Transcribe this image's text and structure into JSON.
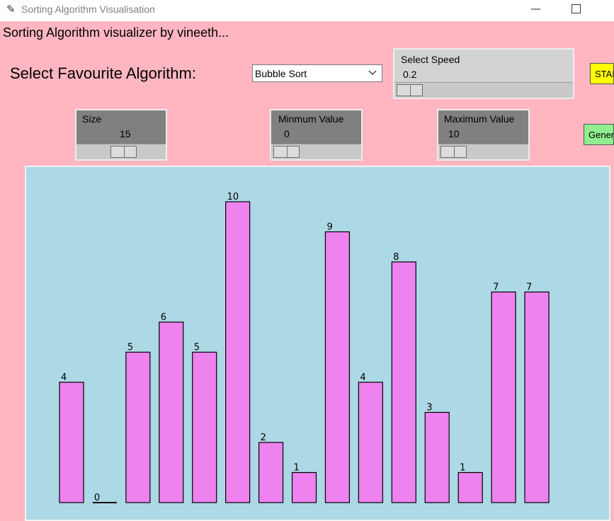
{
  "window": {
    "title": "Sorting Algorithm Visualisation",
    "minimize_glyph": "—"
  },
  "header": {
    "text": "Sorting Algorithm visualizer by vineeth..."
  },
  "algorithm": {
    "label": "Select Favourite Algorithm:",
    "selected": "Bubble Sort"
  },
  "speed": {
    "label": "Select Speed",
    "value": "0.2"
  },
  "size": {
    "label": "Size",
    "value": "15"
  },
  "min_value": {
    "label": "Minmum Value",
    "value": "0"
  },
  "max_value": {
    "label": "Maximum Value",
    "value": "10"
  },
  "buttons": {
    "start": "STAR",
    "generate": "Generate"
  },
  "icons": {
    "app": "feather-icon",
    "dropdown": "chevron-down-icon"
  },
  "colors": {
    "background": "#ffb6c1",
    "canvas": "#add8e6",
    "bar": "#ee82ee",
    "start": "#ffff00",
    "generate": "#90ee90"
  },
  "chart_data": {
    "type": "bar",
    "values": [
      4,
      0,
      5,
      6,
      5,
      10,
      2,
      1,
      9,
      4,
      8,
      3,
      1,
      7,
      7
    ],
    "ylim": [
      0,
      10
    ]
  }
}
